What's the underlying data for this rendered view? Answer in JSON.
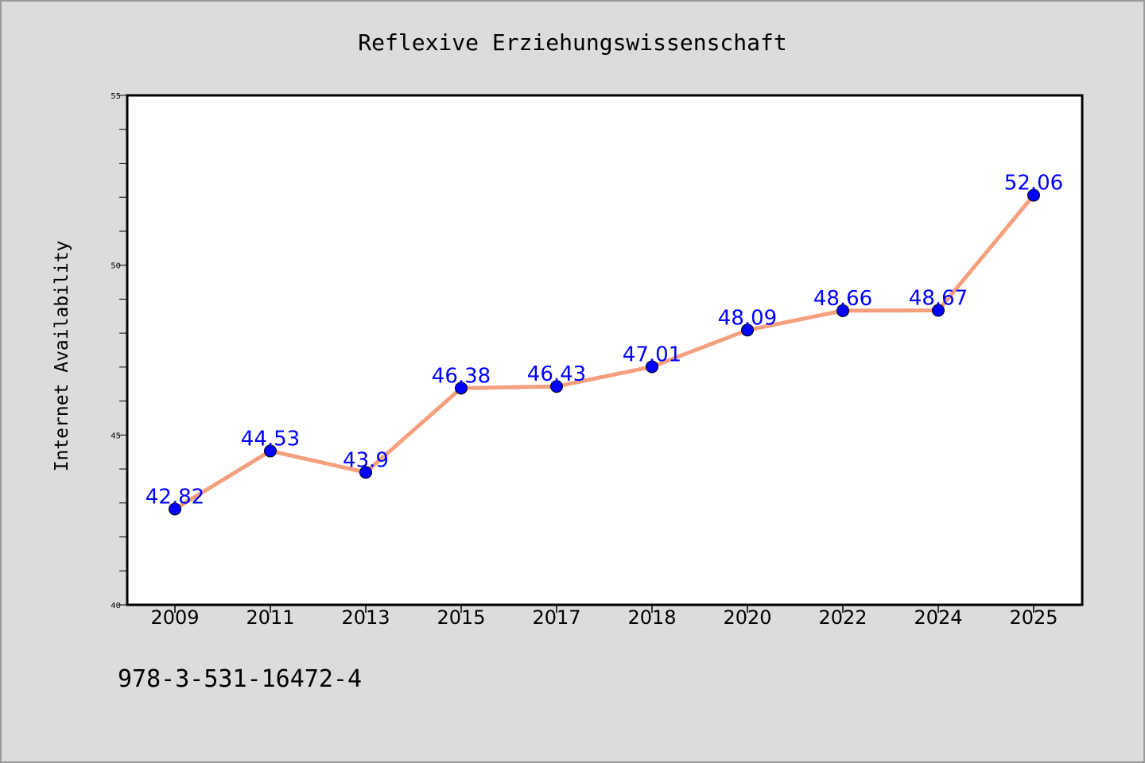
{
  "chart_data": {
    "type": "line",
    "title": "Reflexive Erziehungswissenschaft",
    "xlabel": "",
    "ylabel": "Internet Availability",
    "categories": [
      "2009",
      "2011",
      "2013",
      "2015",
      "2017",
      "2018",
      "2020",
      "2022",
      "2024",
      "2025"
    ],
    "series": [
      {
        "values": [
          42.82,
          44.53,
          43.9,
          46.38,
          46.43,
          47.01,
          48.09,
          48.66,
          48.67,
          52.06
        ],
        "data_labels": [
          "42.82",
          "44.53",
          "43.9",
          "46.38",
          "46.43",
          "47.01",
          "48.09",
          "48.66",
          "48.67",
          "52.06"
        ],
        "line_color": "#f4a07e",
        "marker_color": "#0000ff"
      }
    ],
    "ylim": [
      40,
      55
    ],
    "yticks": [
      "40",
      "45",
      "50",
      "55"
    ],
    "grid": false,
    "label_color": "#0000ff",
    "background_color": "#dcdcdc",
    "plot_background_color": "#ffffff"
  },
  "footnote": "978-3-531-16472-4"
}
